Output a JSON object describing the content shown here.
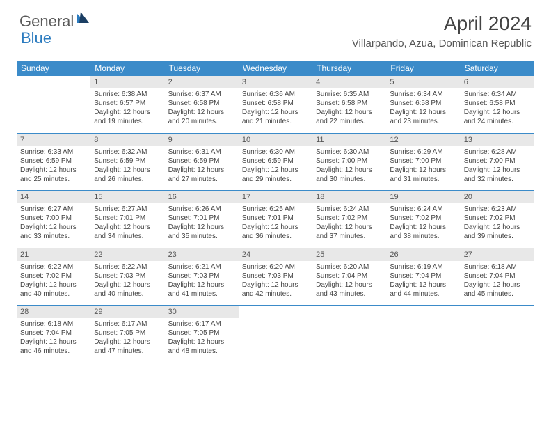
{
  "logo": {
    "general": "General",
    "blue": "Blue"
  },
  "title": "April 2024",
  "location": "Villarpando, Azua, Dominican Republic",
  "colors": {
    "header_bg": "#3b8bc9",
    "header_text": "#ffffff",
    "daynum_bg": "#e8e8e8",
    "text": "#444444",
    "sep": "#3b8bc9",
    "logo_gray": "#5a5a5a",
    "logo_blue": "#2b7bbf"
  },
  "weekdays": [
    "Sunday",
    "Monday",
    "Tuesday",
    "Wednesday",
    "Thursday",
    "Friday",
    "Saturday"
  ],
  "weeks": [
    [
      {
        "empty": true
      },
      {
        "n": "1",
        "sr": "Sunrise: 6:38 AM",
        "ss": "Sunset: 6:57 PM",
        "dl": "Daylight: 12 hours and 19 minutes."
      },
      {
        "n": "2",
        "sr": "Sunrise: 6:37 AM",
        "ss": "Sunset: 6:58 PM",
        "dl": "Daylight: 12 hours and 20 minutes."
      },
      {
        "n": "3",
        "sr": "Sunrise: 6:36 AM",
        "ss": "Sunset: 6:58 PM",
        "dl": "Daylight: 12 hours and 21 minutes."
      },
      {
        "n": "4",
        "sr": "Sunrise: 6:35 AM",
        "ss": "Sunset: 6:58 PM",
        "dl": "Daylight: 12 hours and 22 minutes."
      },
      {
        "n": "5",
        "sr": "Sunrise: 6:34 AM",
        "ss": "Sunset: 6:58 PM",
        "dl": "Daylight: 12 hours and 23 minutes."
      },
      {
        "n": "6",
        "sr": "Sunrise: 6:34 AM",
        "ss": "Sunset: 6:58 PM",
        "dl": "Daylight: 12 hours and 24 minutes."
      }
    ],
    [
      {
        "n": "7",
        "sr": "Sunrise: 6:33 AM",
        "ss": "Sunset: 6:59 PM",
        "dl": "Daylight: 12 hours and 25 minutes."
      },
      {
        "n": "8",
        "sr": "Sunrise: 6:32 AM",
        "ss": "Sunset: 6:59 PM",
        "dl": "Daylight: 12 hours and 26 minutes."
      },
      {
        "n": "9",
        "sr": "Sunrise: 6:31 AM",
        "ss": "Sunset: 6:59 PM",
        "dl": "Daylight: 12 hours and 27 minutes."
      },
      {
        "n": "10",
        "sr": "Sunrise: 6:30 AM",
        "ss": "Sunset: 6:59 PM",
        "dl": "Daylight: 12 hours and 29 minutes."
      },
      {
        "n": "11",
        "sr": "Sunrise: 6:30 AM",
        "ss": "Sunset: 7:00 PM",
        "dl": "Daylight: 12 hours and 30 minutes."
      },
      {
        "n": "12",
        "sr": "Sunrise: 6:29 AM",
        "ss": "Sunset: 7:00 PM",
        "dl": "Daylight: 12 hours and 31 minutes."
      },
      {
        "n": "13",
        "sr": "Sunrise: 6:28 AM",
        "ss": "Sunset: 7:00 PM",
        "dl": "Daylight: 12 hours and 32 minutes."
      }
    ],
    [
      {
        "n": "14",
        "sr": "Sunrise: 6:27 AM",
        "ss": "Sunset: 7:00 PM",
        "dl": "Daylight: 12 hours and 33 minutes."
      },
      {
        "n": "15",
        "sr": "Sunrise: 6:27 AM",
        "ss": "Sunset: 7:01 PM",
        "dl": "Daylight: 12 hours and 34 minutes."
      },
      {
        "n": "16",
        "sr": "Sunrise: 6:26 AM",
        "ss": "Sunset: 7:01 PM",
        "dl": "Daylight: 12 hours and 35 minutes."
      },
      {
        "n": "17",
        "sr": "Sunrise: 6:25 AM",
        "ss": "Sunset: 7:01 PM",
        "dl": "Daylight: 12 hours and 36 minutes."
      },
      {
        "n": "18",
        "sr": "Sunrise: 6:24 AM",
        "ss": "Sunset: 7:02 PM",
        "dl": "Daylight: 12 hours and 37 minutes."
      },
      {
        "n": "19",
        "sr": "Sunrise: 6:24 AM",
        "ss": "Sunset: 7:02 PM",
        "dl": "Daylight: 12 hours and 38 minutes."
      },
      {
        "n": "20",
        "sr": "Sunrise: 6:23 AM",
        "ss": "Sunset: 7:02 PM",
        "dl": "Daylight: 12 hours and 39 minutes."
      }
    ],
    [
      {
        "n": "21",
        "sr": "Sunrise: 6:22 AM",
        "ss": "Sunset: 7:02 PM",
        "dl": "Daylight: 12 hours and 40 minutes."
      },
      {
        "n": "22",
        "sr": "Sunrise: 6:22 AM",
        "ss": "Sunset: 7:03 PM",
        "dl": "Daylight: 12 hours and 40 minutes."
      },
      {
        "n": "23",
        "sr": "Sunrise: 6:21 AM",
        "ss": "Sunset: 7:03 PM",
        "dl": "Daylight: 12 hours and 41 minutes."
      },
      {
        "n": "24",
        "sr": "Sunrise: 6:20 AM",
        "ss": "Sunset: 7:03 PM",
        "dl": "Daylight: 12 hours and 42 minutes."
      },
      {
        "n": "25",
        "sr": "Sunrise: 6:20 AM",
        "ss": "Sunset: 7:04 PM",
        "dl": "Daylight: 12 hours and 43 minutes."
      },
      {
        "n": "26",
        "sr": "Sunrise: 6:19 AM",
        "ss": "Sunset: 7:04 PM",
        "dl": "Daylight: 12 hours and 44 minutes."
      },
      {
        "n": "27",
        "sr": "Sunrise: 6:18 AM",
        "ss": "Sunset: 7:04 PM",
        "dl": "Daylight: 12 hours and 45 minutes."
      }
    ],
    [
      {
        "n": "28",
        "sr": "Sunrise: 6:18 AM",
        "ss": "Sunset: 7:04 PM",
        "dl": "Daylight: 12 hours and 46 minutes."
      },
      {
        "n": "29",
        "sr": "Sunrise: 6:17 AM",
        "ss": "Sunset: 7:05 PM",
        "dl": "Daylight: 12 hours and 47 minutes."
      },
      {
        "n": "30",
        "sr": "Sunrise: 6:17 AM",
        "ss": "Sunset: 7:05 PM",
        "dl": "Daylight: 12 hours and 48 minutes."
      },
      {
        "empty": true
      },
      {
        "empty": true
      },
      {
        "empty": true
      },
      {
        "empty": true
      }
    ]
  ]
}
